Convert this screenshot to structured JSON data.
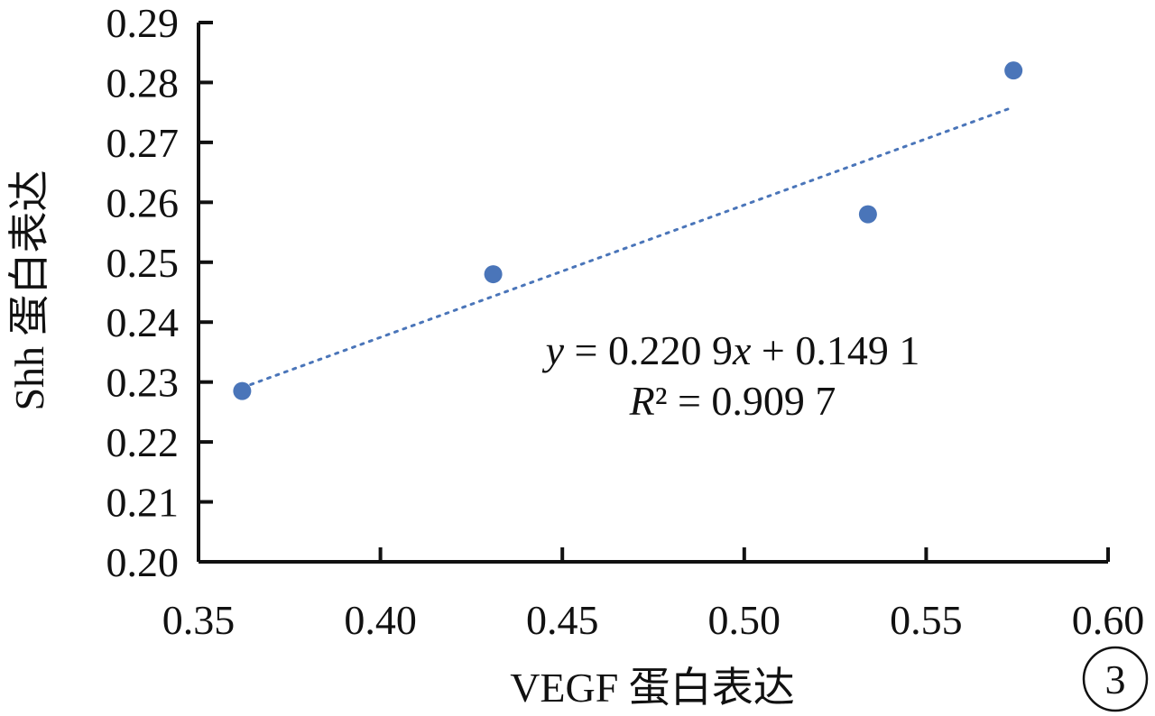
{
  "chart_data": {
    "type": "scatter",
    "title": "",
    "xlabel": "VEGF 蛋白表达",
    "ylabel": "Shh 蛋白表达",
    "xlim": [
      0.35,
      0.6
    ],
    "ylim": [
      0.2,
      0.29
    ],
    "x_ticks": [
      "0.35",
      "0.40",
      "0.45",
      "0.50",
      "0.55",
      "0.60"
    ],
    "y_ticks": [
      "0.20",
      "0.21",
      "0.22",
      "0.23",
      "0.24",
      "0.25",
      "0.26",
      "0.27",
      "0.28",
      "0.29"
    ],
    "grid": false,
    "legend": "none",
    "series": [
      {
        "points": [
          {
            "x": 0.362,
            "y": 0.2285
          },
          {
            "x": 0.431,
            "y": 0.248
          },
          {
            "x": 0.534,
            "y": 0.258
          },
          {
            "x": 0.574,
            "y": 0.282
          }
        ],
        "color": "#4a75b9"
      }
    ],
    "trendline": {
      "style": "dotted",
      "color": "#4a75b9",
      "slope": 0.2209,
      "intercept": 0.1491,
      "x_range": [
        0.362,
        0.574
      ],
      "equation": "y = 0.220 9x + 0.149 1",
      "r_squared": "R² = 0.909 7"
    },
    "panel_label": "3"
  }
}
